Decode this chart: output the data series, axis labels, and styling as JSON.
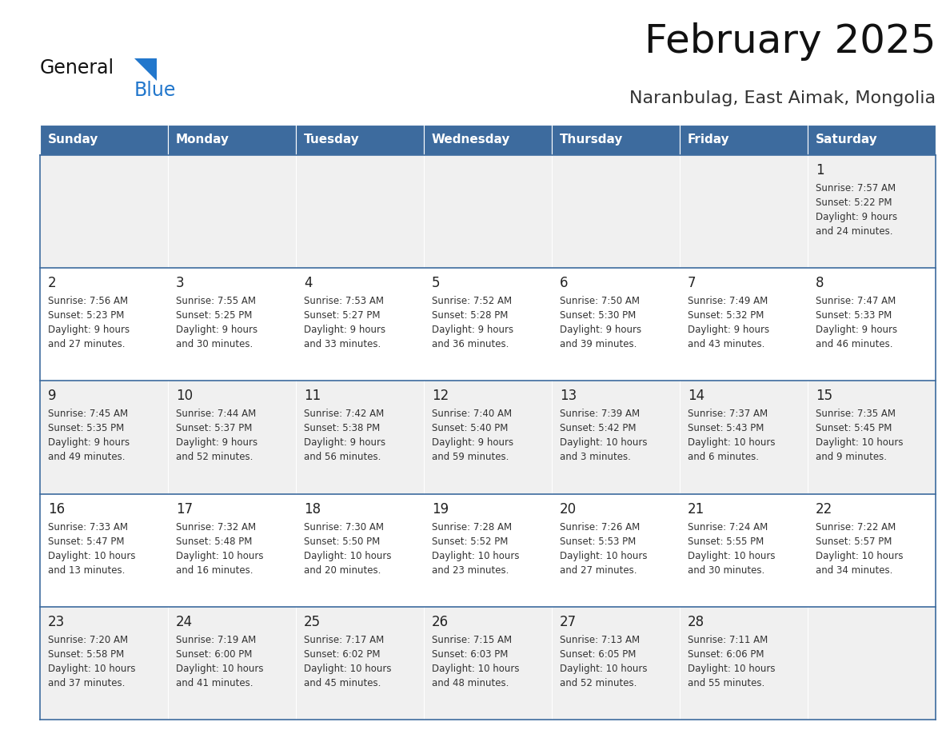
{
  "title": "February 2025",
  "subtitle": "Naranbulag, East Aimak, Mongolia",
  "header_bg": "#3d6b9e",
  "header_text": "#ffffff",
  "weekdays": [
    "Sunday",
    "Monday",
    "Tuesday",
    "Wednesday",
    "Thursday",
    "Friday",
    "Saturday"
  ],
  "row_bg_light": "#f0f0f0",
  "row_bg_white": "#ffffff",
  "cell_border_color": "#3d6b9e",
  "day_number_color": "#222222",
  "info_text_color": "#333333",
  "title_color": "#111111",
  "subtitle_color": "#333333",
  "calendar": [
    [
      null,
      null,
      null,
      null,
      null,
      null,
      {
        "day": "1",
        "sunrise": "7:57 AM",
        "sunset": "5:22 PM",
        "daylight": "9 hours\nand 24 minutes."
      }
    ],
    [
      {
        "day": "2",
        "sunrise": "7:56 AM",
        "sunset": "5:23 PM",
        "daylight": "9 hours\nand 27 minutes."
      },
      {
        "day": "3",
        "sunrise": "7:55 AM",
        "sunset": "5:25 PM",
        "daylight": "9 hours\nand 30 minutes."
      },
      {
        "day": "4",
        "sunrise": "7:53 AM",
        "sunset": "5:27 PM",
        "daylight": "9 hours\nand 33 minutes."
      },
      {
        "day": "5",
        "sunrise": "7:52 AM",
        "sunset": "5:28 PM",
        "daylight": "9 hours\nand 36 minutes."
      },
      {
        "day": "6",
        "sunrise": "7:50 AM",
        "sunset": "5:30 PM",
        "daylight": "9 hours\nand 39 minutes."
      },
      {
        "day": "7",
        "sunrise": "7:49 AM",
        "sunset": "5:32 PM",
        "daylight": "9 hours\nand 43 minutes."
      },
      {
        "day": "8",
        "sunrise": "7:47 AM",
        "sunset": "5:33 PM",
        "daylight": "9 hours\nand 46 minutes."
      }
    ],
    [
      {
        "day": "9",
        "sunrise": "7:45 AM",
        "sunset": "5:35 PM",
        "daylight": "9 hours\nand 49 minutes."
      },
      {
        "day": "10",
        "sunrise": "7:44 AM",
        "sunset": "5:37 PM",
        "daylight": "9 hours\nand 52 minutes."
      },
      {
        "day": "11",
        "sunrise": "7:42 AM",
        "sunset": "5:38 PM",
        "daylight": "9 hours\nand 56 minutes."
      },
      {
        "day": "12",
        "sunrise": "7:40 AM",
        "sunset": "5:40 PM",
        "daylight": "9 hours\nand 59 minutes."
      },
      {
        "day": "13",
        "sunrise": "7:39 AM",
        "sunset": "5:42 PM",
        "daylight": "10 hours\nand 3 minutes."
      },
      {
        "day": "14",
        "sunrise": "7:37 AM",
        "sunset": "5:43 PM",
        "daylight": "10 hours\nand 6 minutes."
      },
      {
        "day": "15",
        "sunrise": "7:35 AM",
        "sunset": "5:45 PM",
        "daylight": "10 hours\nand 9 minutes."
      }
    ],
    [
      {
        "day": "16",
        "sunrise": "7:33 AM",
        "sunset": "5:47 PM",
        "daylight": "10 hours\nand 13 minutes."
      },
      {
        "day": "17",
        "sunrise": "7:32 AM",
        "sunset": "5:48 PM",
        "daylight": "10 hours\nand 16 minutes."
      },
      {
        "day": "18",
        "sunrise": "7:30 AM",
        "sunset": "5:50 PM",
        "daylight": "10 hours\nand 20 minutes."
      },
      {
        "day": "19",
        "sunrise": "7:28 AM",
        "sunset": "5:52 PM",
        "daylight": "10 hours\nand 23 minutes."
      },
      {
        "day": "20",
        "sunrise": "7:26 AM",
        "sunset": "5:53 PM",
        "daylight": "10 hours\nand 27 minutes."
      },
      {
        "day": "21",
        "sunrise": "7:24 AM",
        "sunset": "5:55 PM",
        "daylight": "10 hours\nand 30 minutes."
      },
      {
        "day": "22",
        "sunrise": "7:22 AM",
        "sunset": "5:57 PM",
        "daylight": "10 hours\nand 34 minutes."
      }
    ],
    [
      {
        "day": "23",
        "sunrise": "7:20 AM",
        "sunset": "5:58 PM",
        "daylight": "10 hours\nand 37 minutes."
      },
      {
        "day": "24",
        "sunrise": "7:19 AM",
        "sunset": "6:00 PM",
        "daylight": "10 hours\nand 41 minutes."
      },
      {
        "day": "25",
        "sunrise": "7:17 AM",
        "sunset": "6:02 PM",
        "daylight": "10 hours\nand 45 minutes."
      },
      {
        "day": "26",
        "sunrise": "7:15 AM",
        "sunset": "6:03 PM",
        "daylight": "10 hours\nand 48 minutes."
      },
      {
        "day": "27",
        "sunrise": "7:13 AM",
        "sunset": "6:05 PM",
        "daylight": "10 hours\nand 52 minutes."
      },
      {
        "day": "28",
        "sunrise": "7:11 AM",
        "sunset": "6:06 PM",
        "daylight": "10 hours\nand 55 minutes."
      },
      null
    ]
  ],
  "logo_text_general": "General",
  "logo_text_blue": "Blue",
  "logo_triangle_color": "#2277cc",
  "logo_general_color": "#111111",
  "logo_blue_color": "#2277cc"
}
